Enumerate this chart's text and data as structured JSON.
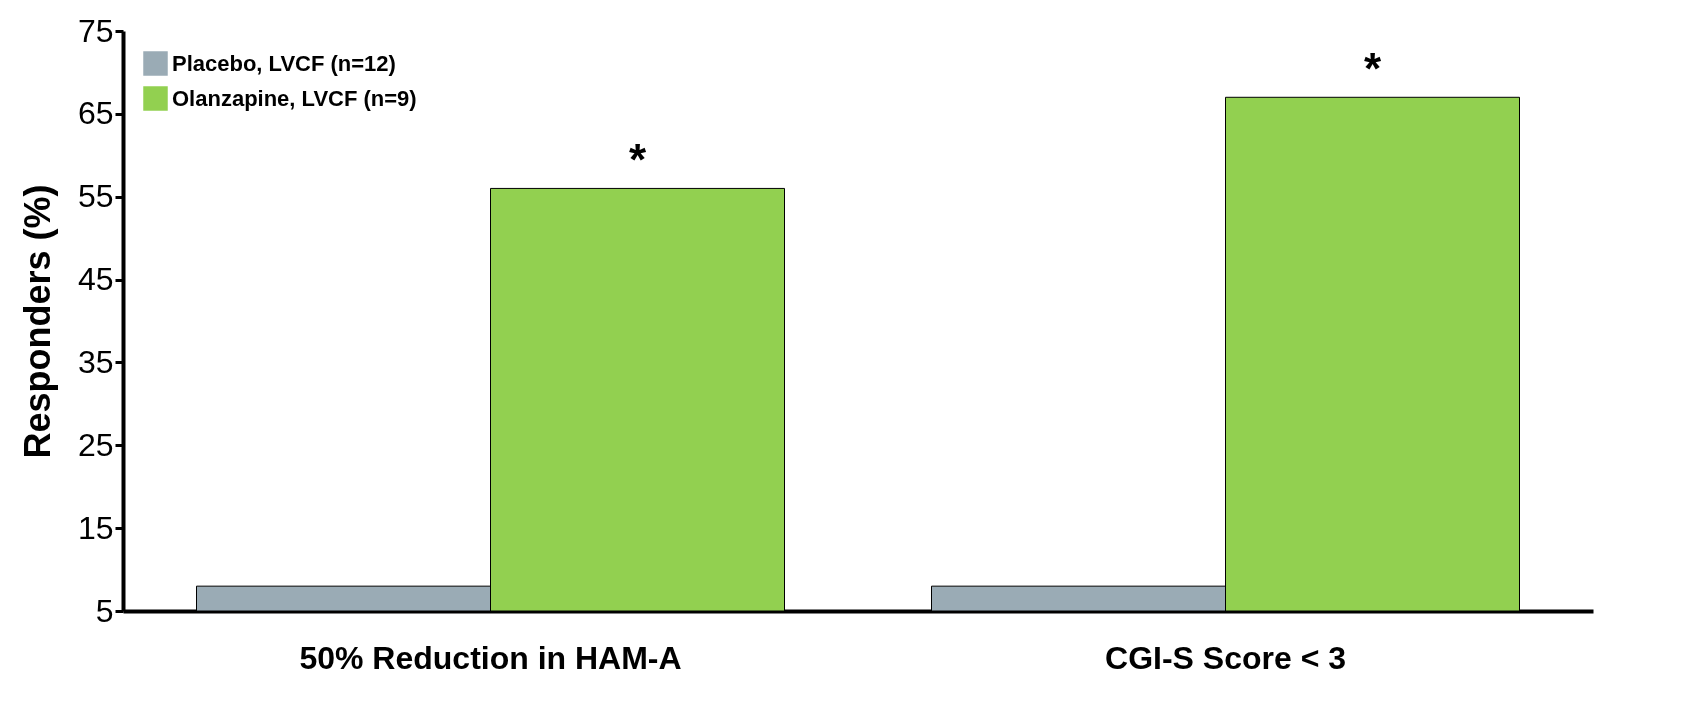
{
  "chart_data": {
    "type": "bar",
    "categories": [
      "50% Reduction in HAM-A",
      "CGI-S Score < 3"
    ],
    "ylabel": "Responders (%)",
    "ylim": [
      5,
      75
    ],
    "yticks": [
      5,
      15,
      25,
      35,
      45,
      55,
      65,
      75
    ],
    "grid": false,
    "legend": "top left",
    "series": [
      {
        "name": "Placebo, LVCF (n=12)",
        "color": "#9aabb5",
        "values": [
          8,
          8
        ]
      },
      {
        "name": "Olanzapine, LVCF (n=9)",
        "color": "#92d050",
        "values": [
          56,
          67
        ]
      }
    ],
    "annotations": [
      "*",
      "*"
    ]
  }
}
